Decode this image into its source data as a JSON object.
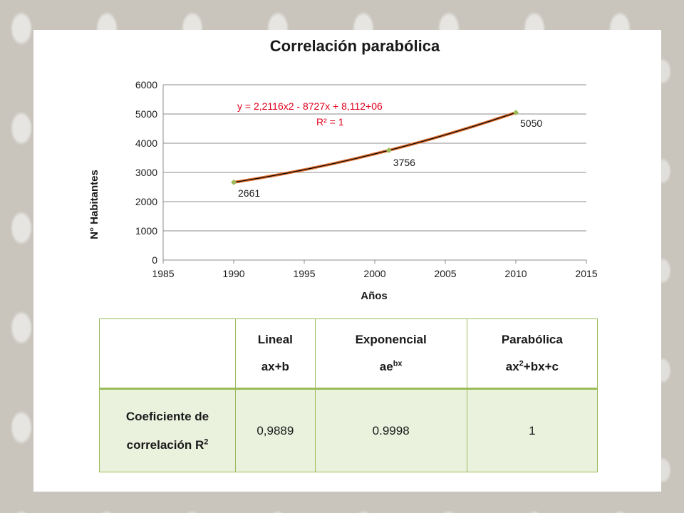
{
  "chart_data": {
    "type": "scatter",
    "title": "Correlación parabólica",
    "xlabel": "Años",
    "ylabel": "N° Habitantes",
    "xlim": [
      1985,
      2015
    ],
    "ylim": [
      0,
      6000
    ],
    "xticks": [
      1985,
      1990,
      1995,
      2000,
      2005,
      2010,
      2015
    ],
    "yticks": [
      0,
      1000,
      2000,
      3000,
      4000,
      5000,
      6000
    ],
    "grid": "horizontal",
    "points": [
      {
        "x": 1990,
        "y": 2661,
        "label": "2661"
      },
      {
        "x": 2001,
        "y": 3756,
        "label": "3756"
      },
      {
        "x": 2010,
        "y": 5050,
        "label": "5050"
      }
    ],
    "trendline": {
      "type": "polynomial-2",
      "equation": "y = 2,2116x2 - 8727x + 8,112+06",
      "r2": "R² = 1"
    },
    "colors": {
      "points": "#9bbb59",
      "trend": "#e07030",
      "fit": "#000000",
      "equation": "#e0001b"
    }
  },
  "table": {
    "headers": [
      {
        "line1": "",
        "line2": "",
        "sup": ""
      },
      {
        "line1": "Lineal",
        "line2": "ax+b",
        "sup": ""
      },
      {
        "line1": "Exponencial",
        "line2": "ae",
        "sup": "bx"
      },
      {
        "line1": "Parabólica",
        "line2": "ax",
        "sup": "2",
        "tail": "+bx+c"
      }
    ],
    "row": {
      "label_line1": "Coeficiente de",
      "label_line2": "correlación R",
      "label_sup": "2",
      "values": [
        "0,9889",
        "0.9998",
        "1"
      ]
    }
  }
}
